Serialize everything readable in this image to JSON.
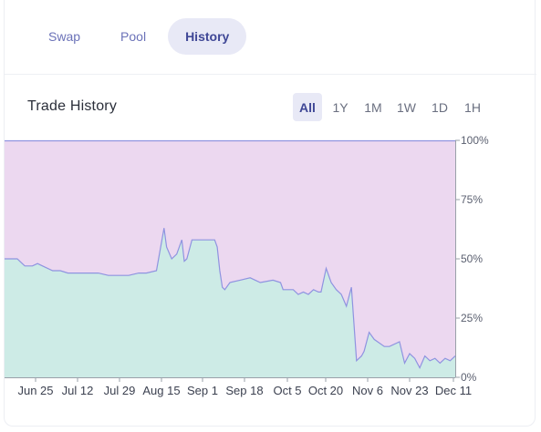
{
  "tabs": [
    {
      "label": "Swap",
      "active": false
    },
    {
      "label": "Pool",
      "active": false
    },
    {
      "label": "History",
      "active": true
    }
  ],
  "section_title": "Trade History",
  "ranges": [
    "All",
    "1Y",
    "1M",
    "1W",
    "1D",
    "1H"
  ],
  "active_range": "All",
  "colors": {
    "upper_fill": "#ecd8f0",
    "lower_fill": "#cdebe6",
    "line": "#8f93e0",
    "accent": "#3f4796"
  },
  "chart_data": {
    "type": "area",
    "title": "",
    "xlabel": "",
    "ylabel": "",
    "stacked_percent": true,
    "ylim": [
      0,
      100
    ],
    "y_ticks": [
      "0%",
      "25%",
      "50%",
      "75%",
      "100%"
    ],
    "y_axis_position": "right",
    "x_ticks": [
      "Jun 25",
      "Jul 12",
      "Jul 29",
      "Aug 15",
      "Sep 1",
      "Sep 18",
      "Oct 5",
      "Oct 20",
      "Nov 6",
      "Nov 23",
      "Dec 11"
    ],
    "x_range": [
      "2023-06-17",
      "2023-12-12"
    ],
    "grid": false,
    "legend": "none",
    "series": [
      {
        "x": [
          "2023-06-17",
          "2023-06-22",
          "2023-06-24",
          "2023-06-25",
          "2023-06-28",
          "2023-06-30",
          "2023-07-02",
          "2023-07-06",
          "2023-07-09",
          "2023-07-12",
          "2023-07-16",
          "2023-07-20",
          "2023-07-24",
          "2023-07-28",
          "2023-08-01",
          "2023-08-05",
          "2023-08-09",
          "2023-08-12",
          "2023-08-16",
          "2023-08-19",
          "2023-08-20",
          "2023-08-22",
          "2023-08-24",
          "2023-08-26",
          "2023-08-27",
          "2023-08-28",
          "2023-08-30",
          "2023-09-02",
          "2023-09-05",
          "2023-09-08",
          "2023-09-09",
          "2023-09-10",
          "2023-09-11",
          "2023-09-12",
          "2023-09-14",
          "2023-09-18",
          "2023-09-22",
          "2023-09-24",
          "2023-09-26",
          "2023-10-01",
          "2023-10-04",
          "2023-10-05",
          "2023-10-07",
          "2023-10-09",
          "2023-10-11",
          "2023-10-13",
          "2023-10-15",
          "2023-10-17",
          "2023-10-19",
          "2023-10-20",
          "2023-10-22",
          "2023-10-24",
          "2023-10-26",
          "2023-10-28",
          "2023-10-30",
          "2023-11-01",
          "2023-11-03",
          "2023-11-04",
          "2023-11-05",
          "2023-11-06",
          "2023-11-08",
          "2023-11-10",
          "2023-11-14",
          "2023-11-16",
          "2023-11-20",
          "2023-11-22",
          "2023-11-24",
          "2023-11-26",
          "2023-11-28",
          "2023-11-30",
          "2023-12-02",
          "2023-12-04",
          "2023-12-06",
          "2023-12-08",
          "2023-12-10",
          "2023-12-12"
        ],
        "values": [
          50,
          50,
          48,
          47,
          47,
          48,
          47,
          45,
          45,
          44,
          44,
          44,
          44,
          43,
          43,
          43,
          44,
          44,
          45,
          63,
          55,
          50,
          52,
          58,
          49,
          50,
          58,
          58,
          58,
          58,
          55,
          45,
          38,
          37,
          40,
          41,
          42,
          41,
          40,
          41,
          40,
          37,
          37,
          37,
          35,
          36,
          35,
          37,
          36,
          36,
          46,
          40,
          37,
          35,
          30,
          38,
          7,
          8,
          9,
          11,
          19,
          16,
          13,
          13,
          15,
          6,
          10,
          8,
          4,
          9,
          7,
          8,
          6,
          8,
          7,
          9
        ]
      }
    ]
  }
}
